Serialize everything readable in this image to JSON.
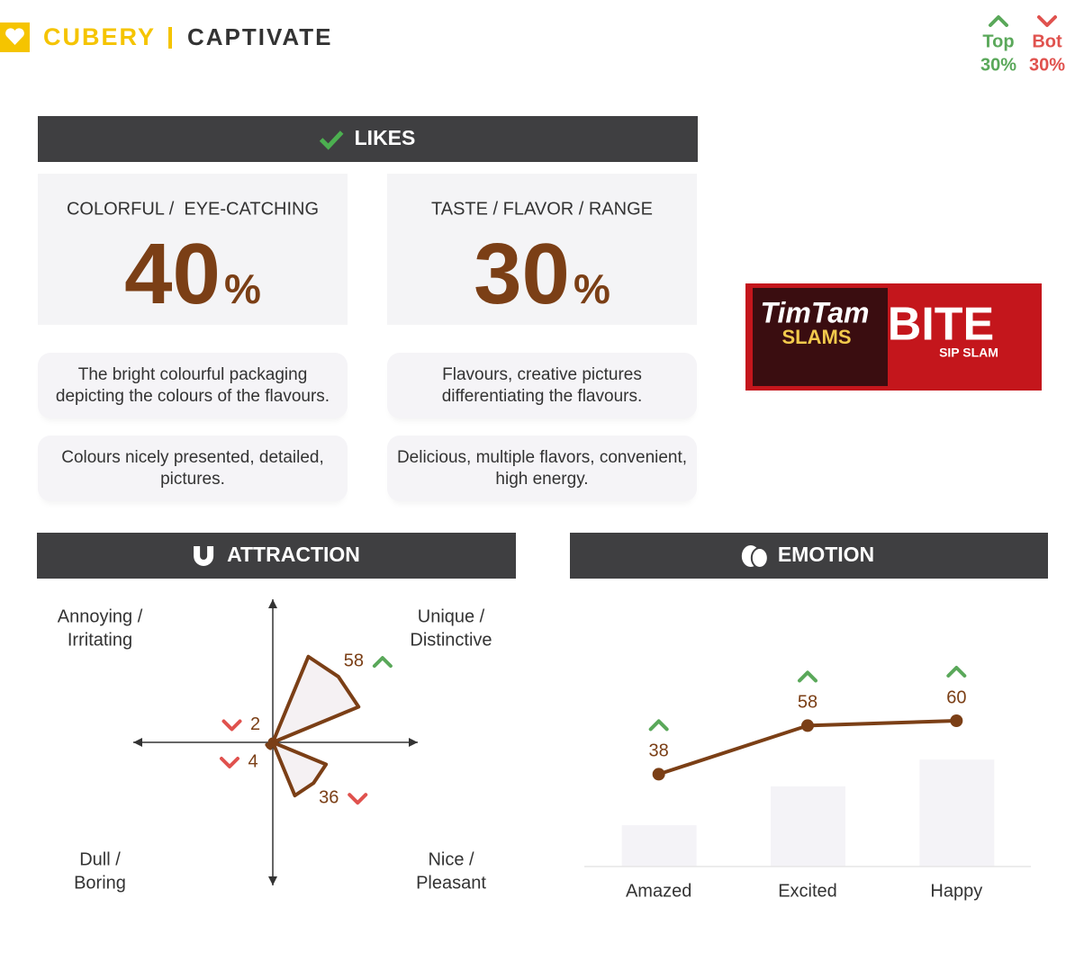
{
  "header": {
    "brand": "CUBERY",
    "title": "CAPTIVATE"
  },
  "legend": [
    {
      "label": "Top",
      "value": "30%",
      "direction": "up",
      "color": "#5aa85a"
    },
    {
      "label": "Bot",
      "value": "30%",
      "direction": "down",
      "color": "#e0524e"
    }
  ],
  "likes": {
    "title": "LIKES",
    "cards": [
      {
        "title": "COLORFUL /  EYE-CATCHING",
        "value": 40,
        "unit": "%",
        "comments": [
          "The bright colourful packaging depicting the colours of the flavours.",
          "Colours nicely presented, detailed, pictures."
        ]
      },
      {
        "title": "TASTE / FLAVOR / RANGE",
        "value": 30,
        "unit": "%",
        "comments": [
          "Flavours, creative pictures differentiating the flavours.",
          "Delicious, multiple flavors, convenient, high energy."
        ]
      }
    ]
  },
  "product": {
    "brand": "TimTam",
    "line": "SLAMS",
    "name": "BITE",
    "sub": "SIP SLAM"
  },
  "chart_data": [
    {
      "type": "quadrant",
      "title": "ATTRACTION",
      "rlim": [
        0,
        90
      ],
      "color": "#7b3f16",
      "quadrants": [
        {
          "position": "top-right",
          "label": [
            "Unique /",
            "Distinctive"
          ],
          "value": 58,
          "direction": "up"
        },
        {
          "position": "top-left",
          "label": [
            "Annoying /",
            "Irritating"
          ],
          "value": 2,
          "direction": "down"
        },
        {
          "position": "bottom-left",
          "label": [
            "Dull /",
            "Boring"
          ],
          "value": 4,
          "direction": "down"
        },
        {
          "position": "bottom-right",
          "label": [
            "Nice /",
            "Pleasant"
          ],
          "value": 36,
          "direction": "down"
        }
      ]
    },
    {
      "type": "line",
      "title": "EMOTION",
      "categories": [
        "Amazed",
        "Excited",
        "Happy"
      ],
      "values": [
        38,
        58,
        60
      ],
      "directions": [
        "up",
        "up",
        "up"
      ],
      "bar_values": [
        17,
        33,
        44
      ],
      "ylim": [
        0,
        70
      ],
      "color": "#7b3f16",
      "bar_color": "#f4f3f7"
    }
  ]
}
